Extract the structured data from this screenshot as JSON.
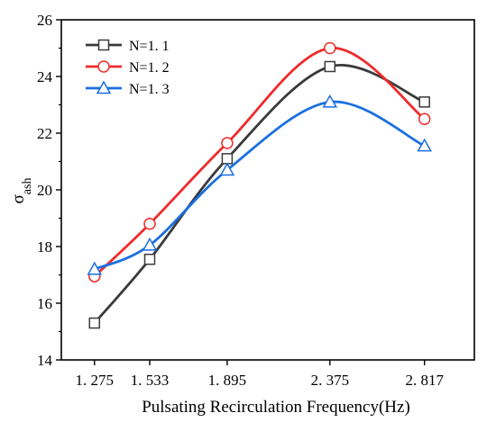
{
  "chart_data": {
    "type": "line",
    "xlabel": "Pulsating Recirculation Frequency(Hz)",
    "ylabel_main": "σ",
    "ylabel_sub": "ash",
    "x": [
      1.275,
      1.533,
      1.895,
      2.375,
      2.817
    ],
    "x_tick_labels": [
      "1. 275",
      "1. 533",
      "1. 895",
      "2. 375",
      "2. 817"
    ],
    "ylim": [
      14,
      26
    ],
    "y_ticks": [
      14,
      16,
      18,
      20,
      22,
      24,
      26
    ],
    "y_tick_labels": [
      "14",
      "16",
      "18",
      "20",
      "22",
      "24",
      "26"
    ],
    "legend_position": "top-left",
    "smooth": true,
    "series": [
      {
        "name": "N=1. 1",
        "values": [
          15.3,
          17.55,
          21.1,
          24.35,
          23.1
        ],
        "color": "#3a3a3a",
        "marker": "square"
      },
      {
        "name": "N=1. 2",
        "values": [
          16.95,
          18.8,
          21.65,
          25.0,
          22.5
        ],
        "color": "#ee2b2b",
        "marker": "circle"
      },
      {
        "name": "N=1. 3",
        "values": [
          17.2,
          18.05,
          20.7,
          23.1,
          21.55
        ],
        "color": "#1a6fe0",
        "marker": "triangle"
      }
    ]
  }
}
